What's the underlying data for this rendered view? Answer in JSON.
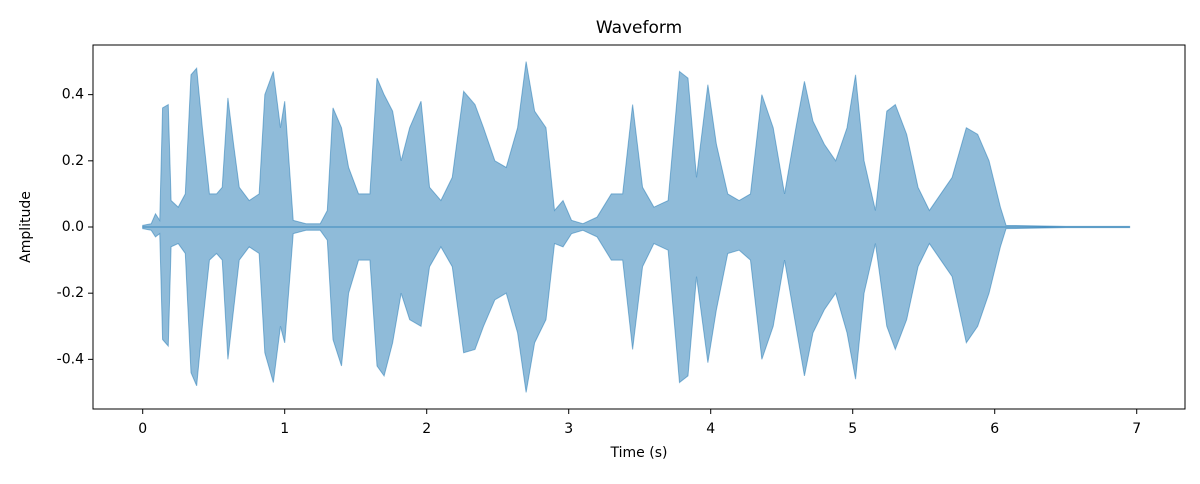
{
  "chart_data": {
    "type": "area",
    "title": "Waveform",
    "x_label": "Time (s)",
    "y_label": "Amplitude",
    "x": [
      0,
      0.06,
      0.09,
      0.12,
      0.14,
      0.18,
      0.2,
      0.25,
      0.3,
      0.34,
      0.38,
      0.42,
      0.47,
      0.52,
      0.56,
      0.6,
      0.64,
      0.68,
      0.75,
      0.82,
      0.86,
      0.92,
      0.97,
      1.0,
      1.06,
      1.15,
      1.25,
      1.3,
      1.34,
      1.4,
      1.45,
      1.52,
      1.6,
      1.65,
      1.7,
      1.76,
      1.82,
      1.88,
      1.96,
      2.02,
      2.1,
      2.18,
      2.26,
      2.34,
      2.4,
      2.48,
      2.56,
      2.64,
      2.7,
      2.76,
      2.84,
      2.9,
      2.96,
      3.02,
      3.1,
      3.2,
      3.3,
      3.38,
      3.45,
      3.52,
      3.6,
      3.7,
      3.78,
      3.84,
      3.9,
      3.98,
      4.04,
      4.12,
      4.2,
      4.28,
      4.36,
      4.44,
      4.52,
      4.6,
      4.66,
      4.72,
      4.8,
      4.88,
      4.96,
      5.02,
      5.08,
      5.16,
      5.24,
      5.3,
      5.38,
      5.46,
      5.54,
      5.62,
      5.7,
      5.8,
      5.88,
      5.96,
      6.04,
      6.08,
      6.5,
      6.95
    ],
    "upper": [
      0.005,
      0.01,
      0.04,
      0.02,
      0.36,
      0.37,
      0.08,
      0.06,
      0.1,
      0.46,
      0.48,
      0.3,
      0.1,
      0.1,
      0.12,
      0.39,
      0.25,
      0.12,
      0.08,
      0.1,
      0.4,
      0.47,
      0.3,
      0.38,
      0.02,
      0.01,
      0.01,
      0.05,
      0.36,
      0.3,
      0.18,
      0.1,
      0.1,
      0.45,
      0.4,
      0.35,
      0.2,
      0.3,
      0.38,
      0.12,
      0.08,
      0.15,
      0.41,
      0.37,
      0.3,
      0.2,
      0.18,
      0.3,
      0.5,
      0.35,
      0.3,
      0.05,
      0.08,
      0.02,
      0.01,
      0.03,
      0.1,
      0.1,
      0.37,
      0.12,
      0.06,
      0.08,
      0.47,
      0.45,
      0.15,
      0.43,
      0.25,
      0.1,
      0.08,
      0.1,
      0.4,
      0.3,
      0.1,
      0.3,
      0.44,
      0.32,
      0.25,
      0.2,
      0.3,
      0.46,
      0.2,
      0.05,
      0.35,
      0.37,
      0.28,
      0.12,
      0.05,
      0.1,
      0.15,
      0.3,
      0.28,
      0.2,
      0.06,
      0.005,
      0.002,
      0.002
    ],
    "lower": [
      -0.005,
      -0.01,
      -0.03,
      -0.02,
      -0.34,
      -0.36,
      -0.06,
      -0.05,
      -0.08,
      -0.44,
      -0.48,
      -0.3,
      -0.1,
      -0.08,
      -0.1,
      -0.4,
      -0.25,
      -0.1,
      -0.06,
      -0.08,
      -0.38,
      -0.47,
      -0.3,
      -0.35,
      -0.02,
      -0.01,
      -0.01,
      -0.04,
      -0.34,
      -0.42,
      -0.2,
      -0.1,
      -0.1,
      -0.42,
      -0.45,
      -0.35,
      -0.2,
      -0.28,
      -0.3,
      -0.12,
      -0.06,
      -0.12,
      -0.38,
      -0.37,
      -0.3,
      -0.22,
      -0.2,
      -0.32,
      -0.5,
      -0.35,
      -0.28,
      -0.05,
      -0.06,
      -0.02,
      -0.01,
      -0.03,
      -0.1,
      -0.1,
      -0.37,
      -0.12,
      -0.05,
      -0.07,
      -0.47,
      -0.45,
      -0.15,
      -0.41,
      -0.25,
      -0.08,
      -0.07,
      -0.1,
      -0.4,
      -0.3,
      -0.1,
      -0.3,
      -0.45,
      -0.32,
      -0.25,
      -0.2,
      -0.32,
      -0.46,
      -0.2,
      -0.05,
      -0.3,
      -0.37,
      -0.28,
      -0.12,
      -0.05,
      -0.1,
      -0.15,
      -0.35,
      -0.3,
      -0.2,
      -0.06,
      -0.005,
      -0.002,
      -0.002
    ],
    "color": "#1f77b4",
    "alpha": 0.5,
    "xlim": [
      -0.35,
      7.34
    ],
    "ylim": [
      -0.55,
      0.55
    ],
    "xticks": [
      0,
      1,
      2,
      3,
      4,
      5,
      6,
      7
    ],
    "yticks": [
      -0.4,
      -0.2,
      {
        "value": 0,
        "label": "0.0"
      },
      0.2,
      0.4
    ]
  }
}
